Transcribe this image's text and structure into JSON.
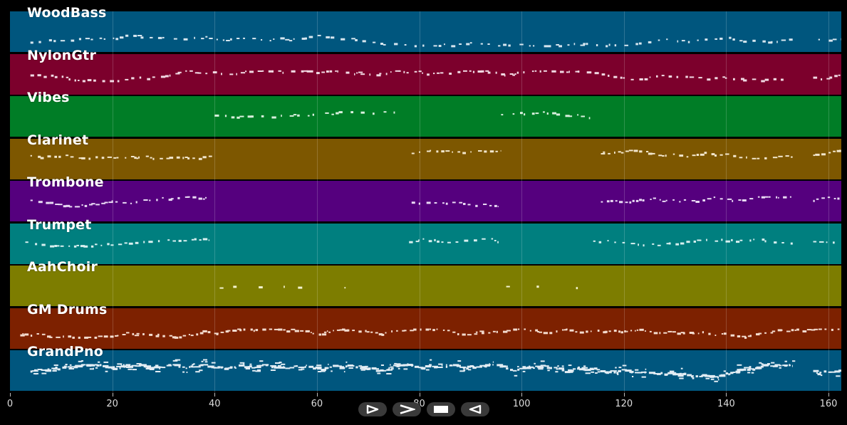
{
  "timeline": {
    "x_min": 0,
    "x_max": 162.5,
    "ticks": [
      0,
      20,
      40,
      60,
      80,
      100,
      120,
      140,
      160
    ],
    "tick_labels": [
      "0",
      "20",
      "40",
      "60",
      "80",
      "100",
      "120",
      "140",
      "160"
    ]
  },
  "tracks": [
    {
      "name": "WoodBass",
      "color": "#00567e",
      "segments": [
        [
          4,
          153
        ],
        [
          158,
          162.5
        ]
      ],
      "density": 0.55,
      "noteColor": "#d7e6ef",
      "lane": 0.7,
      "spread": 0.13
    },
    {
      "name": "NylonGtr",
      "color": "#7c002c",
      "segments": [
        [
          4,
          152
        ],
        [
          157,
          162.5
        ]
      ],
      "density": 0.7,
      "noteColor": "#f1d9e3",
      "lane": 0.52,
      "spread": 0.12
    },
    {
      "name": "Vibes",
      "color": "#007d26",
      "segments": [
        [
          40,
          76.5
        ],
        [
          96,
          113.5
        ]
      ],
      "density": 0.5,
      "noteColor": "#d8efdd",
      "lane": 0.45,
      "spread": 0.08
    },
    {
      "name": "Clarinet",
      "color": "#7d5700",
      "segments": [
        [
          4,
          39.5
        ],
        [
          78.5,
          96
        ],
        [
          115.5,
          153
        ],
        [
          157,
          162.5
        ]
      ],
      "density": 0.75,
      "noteColor": "#f2e6cc",
      "lane": 0.37,
      "spread": 0.1
    },
    {
      "name": "Trombone",
      "color": "#55007e",
      "segments": [
        [
          4,
          39
        ],
        [
          78.5,
          95.5
        ],
        [
          115.5,
          153
        ],
        [
          157,
          162.5
        ]
      ],
      "density": 0.75,
      "noteColor": "#e9daf4",
      "lane": 0.5,
      "spread": 0.12
    },
    {
      "name": "Trumpet",
      "color": "#007f7f",
      "segments": [
        [
          3,
          39
        ],
        [
          78,
          95.5
        ],
        [
          114,
          153
        ],
        [
          157,
          162.5
        ]
      ],
      "density": 0.65,
      "noteColor": "#d7efef",
      "lane": 0.45,
      "spread": 0.09
    },
    {
      "name": "AahChoir",
      "color": "#7d7d00",
      "segments": [
        [
          41,
          74
        ],
        [
          97,
          112
        ]
      ],
      "density": 0.12,
      "noteColor": "#f4f4cf",
      "lane": 0.52,
      "spread": 0.03
    },
    {
      "name": "GM Drums",
      "color": "#7d2100",
      "segments": [
        [
          2,
          162.5
        ]
      ],
      "density": 0.9,
      "noteColor": "#f4dccf",
      "lane": 0.6,
      "spread": 0.1
    },
    {
      "name": "GrandPno",
      "color": "#00567e",
      "segments": [
        [
          4,
          153
        ],
        [
          157,
          162.5
        ]
      ],
      "density": 1.4,
      "noteColor": "#e3edf4",
      "lane": 0.52,
      "spread": 0.18
    }
  ],
  "transport": {
    "buttons": [
      {
        "name": "play-button",
        "icon": "play-icon"
      },
      {
        "name": "fast-forward-button",
        "icon": "forward-icon"
      },
      {
        "name": "stop-button",
        "icon": "stop-icon"
      },
      {
        "name": "rewind-button",
        "icon": "rewind-icon"
      }
    ]
  }
}
